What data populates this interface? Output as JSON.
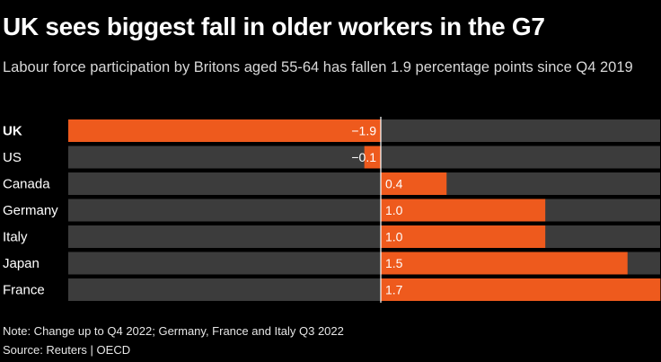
{
  "title": "UK sees biggest fall in older workers in the G7",
  "subtitle": "Labour force participation by Britons aged 55-64 has fallen 1.9 percentage points since Q4 2019",
  "note": "Note: Change up to Q4 2022; Germany, France and Italy Q3 2022",
  "source": "Source: Reuters | OECD",
  "colors": {
    "background": "#000000",
    "track": "#3c3c3c",
    "bar": "#ee5a1d",
    "zero_line": "#ffffff",
    "text": "#ffffff"
  },
  "chart_data": {
    "type": "bar",
    "orientation": "horizontal",
    "categories": [
      "UK",
      "US",
      "Canada",
      "Germany",
      "Italy",
      "Japan",
      "France"
    ],
    "values": [
      -1.9,
      -0.1,
      0.4,
      1.0,
      1.0,
      1.5,
      1.7
    ],
    "value_labels": [
      "−1.9",
      "−0.1",
      "0.4",
      "1.0",
      "1.0",
      "1.5",
      "1.7"
    ],
    "highlight": "UK",
    "xlim": [
      -1.9,
      1.7
    ],
    "grid": false,
    "legend": "none"
  }
}
